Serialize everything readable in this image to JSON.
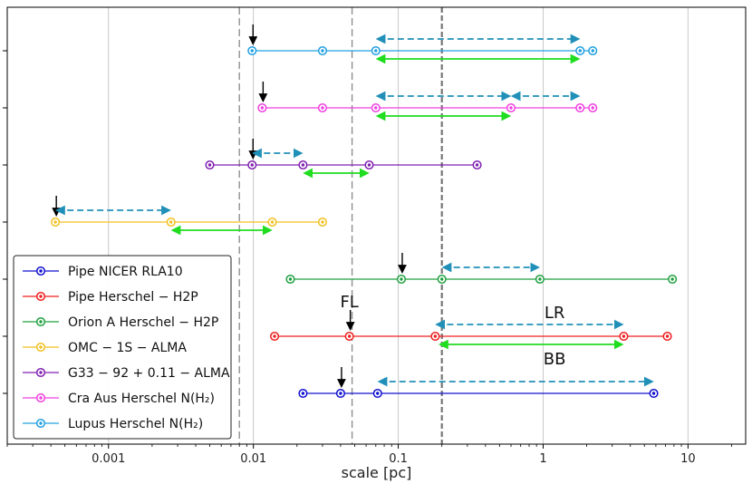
{
  "chart_data": {
    "type": "scatter",
    "xlabel": "scale [pc]",
    "xscale": "log",
    "xlim": [
      0.0002,
      25
    ],
    "xticks": [
      {
        "value": 0.001,
        "label": "0.001"
      },
      {
        "value": 0.01,
        "label": "0.01"
      },
      {
        "value": 0.1,
        "label": "0.1"
      },
      {
        "value": 1,
        "label": "1"
      },
      {
        "value": 10,
        "label": "10"
      }
    ],
    "grid": true,
    "legend_position": "lower-left",
    "vlines": [
      {
        "x": 0.008,
        "style": "dashed",
        "color": "#888888"
      },
      {
        "x": 0.048,
        "style": "dashed",
        "color": "#888888"
      },
      {
        "x": 0.2,
        "style": "dashed-bold",
        "color": "#777777"
      }
    ],
    "series": [
      {
        "name": "Pipe NICER RLA10",
        "color": "#1010d0",
        "row": 0,
        "range": [
          0.022,
          5.8
        ],
        "points": [
          0.022,
          0.04,
          0.072,
          5.8
        ],
        "arrow": 0.04,
        "lr": [
          0.072,
          5.8
        ],
        "bb": null
      },
      {
        "name": "Pipe Herschel − H2P",
        "color": "#ee2020",
        "row": 1,
        "range": [
          0.014,
          7.2
        ],
        "points": [
          0.014,
          0.046,
          0.18,
          3.6,
          7.2
        ],
        "arrow": 0.046,
        "lr": [
          0.18,
          3.6
        ],
        "bb": [
          0.19,
          3.6
        ]
      },
      {
        "name": "Orion A Herschel − H2P",
        "color": "#20a040",
        "row": 2,
        "range": [
          0.018,
          7.8
        ],
        "points": [
          0.018,
          0.105,
          0.2,
          0.95,
          7.8
        ],
        "arrow": 0.105,
        "lr": [
          0.2,
          0.95
        ],
        "bb": null
      },
      {
        "name": "OMC − 1S − ALMA",
        "color": "#f0c020",
        "row": 3,
        "range": [
          0.00043,
          0.03
        ],
        "points": [
          0.00043,
          0.0027,
          0.0135,
          0.03
        ],
        "arrow": 0.00043,
        "lr": [
          0.00043,
          0.0027
        ],
        "bb": [
          0.0027,
          0.0135
        ]
      },
      {
        "name": "G33 − 92 + 0.11 − ALMA",
        "color": "#8020b0",
        "row": 4,
        "range": [
          0.005,
          0.35
        ],
        "points": [
          0.005,
          0.0098,
          0.022,
          0.063,
          0.35
        ],
        "arrow": 0.0098,
        "lr": [
          0.0098,
          0.022
        ],
        "bb": [
          0.022,
          0.063
        ]
      },
      {
        "name": "Cra Aus Herschel N(H₂)",
        "color": "#f040e0",
        "row": 5,
        "range": [
          0.0115,
          2.2
        ],
        "points": [
          0.0115,
          0.03,
          0.07,
          0.6,
          1.8,
          2.2
        ],
        "arrow": 0.0115,
        "lr": [
          0.07,
          0.6,
          1.8
        ],
        "bb": [
          0.07,
          0.6
        ]
      },
      {
        "name": "Lupus Herschel N(H₂)",
        "color": "#20a0e0",
        "row": 6,
        "range": [
          0.0098,
          2.2
        ],
        "points": [
          0.0098,
          0.03,
          0.07,
          1.8,
          2.2
        ],
        "arrow": 0.0098,
        "lr": [
          0.07,
          1.8
        ],
        "bb": [
          0.07,
          1.8
        ]
      }
    ],
    "lr_color": "#2090b8",
    "bb_color": "#20dd20",
    "annotations": [
      {
        "text": "FL",
        "x": 0.046,
        "row": 1,
        "pos": "above-arrow"
      },
      {
        "text": "LR",
        "x": 1.2,
        "row": 1,
        "pos": "above"
      },
      {
        "text": "BB",
        "x": 1.2,
        "row": 1,
        "pos": "below"
      }
    ]
  }
}
